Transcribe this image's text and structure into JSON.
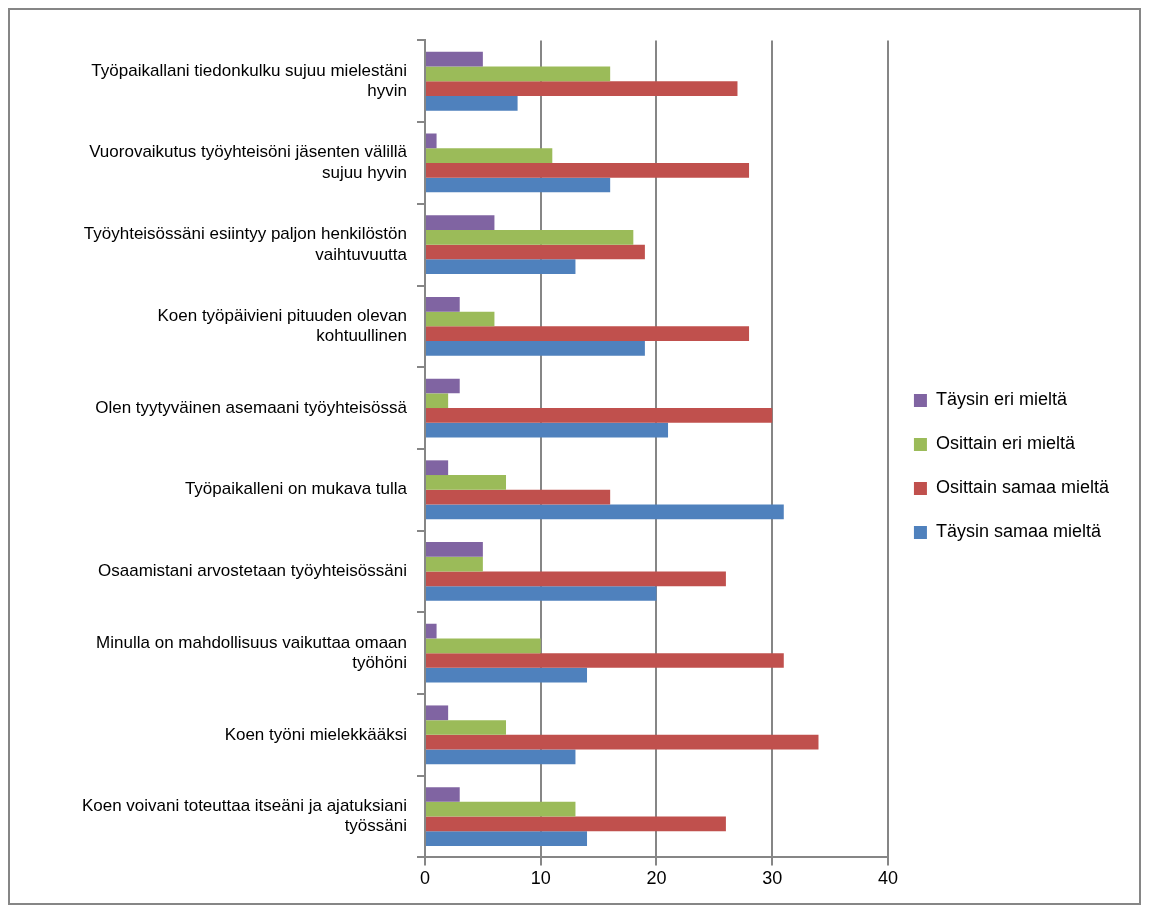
{
  "chart_data": {
    "type": "bar",
    "orientation": "horizontal",
    "categories": [
      "Työpaikallani tiedonkulku sujuu mielestäni hyvin",
      "Vuorovaikutus työyhteisöni jäsenten välillä sujuu hyvin",
      "Työyhteisössäni esiintyy paljon henkilöstön vaihtuvuutta",
      "Koen työpäivieni pituuden olevan kohtuullinen",
      "Olen tyytyväinen asemaani työyhteisössä",
      "Työpaikalleni on mukava tulla",
      "Osaamistani arvostetaan työyhteisössäni",
      "Minulla on mahdollisuus vaikuttaa omaan työhöni",
      "Koen työni mielekkääksi",
      "Koen voivani toteuttaa itseäni ja ajatuksiani työssäni"
    ],
    "series": [
      {
        "name": "Täysin eri mieltä",
        "color": "#8064a2",
        "values": [
          5,
          1,
          6,
          3,
          3,
          2,
          5,
          1,
          2,
          3
        ]
      },
      {
        "name": "Osittain eri mieltä",
        "color": "#9bbb59",
        "values": [
          16,
          11,
          18,
          6,
          2,
          7,
          5,
          10,
          7,
          13
        ]
      },
      {
        "name": "Osittain samaa mieltä",
        "color": "#c0504d",
        "values": [
          27,
          28,
          19,
          28,
          30,
          16,
          26,
          31,
          34,
          26
        ]
      },
      {
        "name": "Täysin samaa mieltä",
        "color": "#4f81bd",
        "values": [
          8,
          16,
          13,
          19,
          21,
          31,
          20,
          14,
          13,
          14
        ]
      }
    ],
    "xlim": [
      0,
      40
    ],
    "xticks": [
      0,
      10,
      20,
      30,
      40
    ],
    "grid": "x",
    "legend": "right"
  }
}
